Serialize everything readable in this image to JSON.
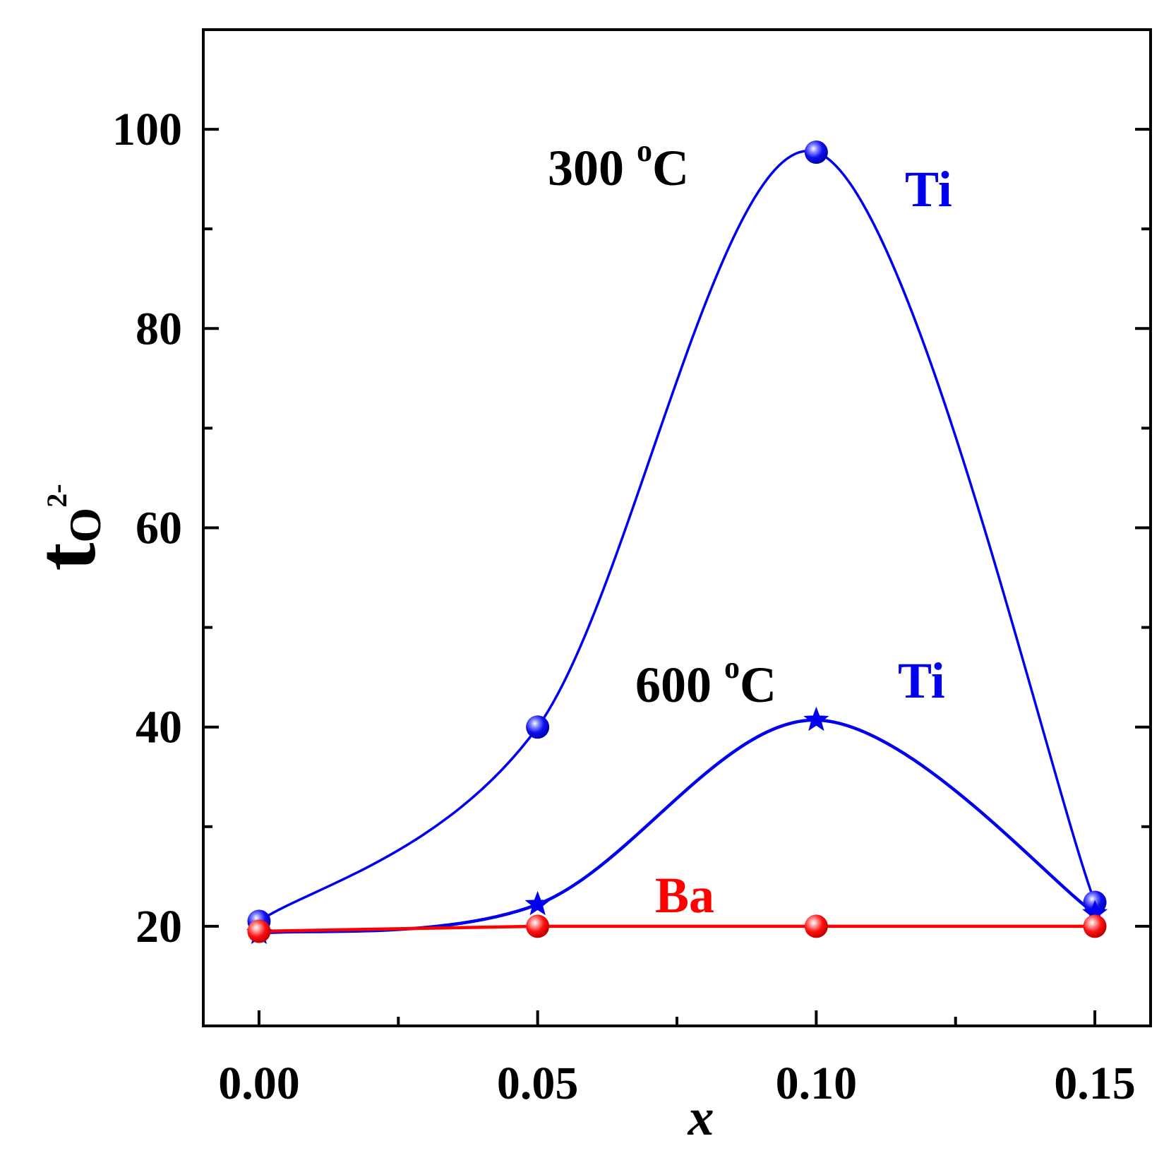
{
  "chart_data": {
    "type": "line",
    "x": [
      0.0,
      0.05,
      0.1,
      0.15
    ],
    "xlabel": "x",
    "ylabel": {
      "main": "t",
      "sub": "O",
      "sup": "2-"
    },
    "xlim": [
      -0.01,
      0.16
    ],
    "ylim": [
      10,
      110
    ],
    "xticks": [
      0.0,
      0.05,
      0.1,
      0.15
    ],
    "xtick_labels": [
      "0.00",
      "0.05",
      "0.10",
      "0.15"
    ],
    "xminor": [
      0.025,
      0.075,
      0.125
    ],
    "yticks": [
      20,
      40,
      60,
      80,
      100
    ],
    "ytick_labels": [
      "20",
      "40",
      "60",
      "80",
      "100"
    ],
    "yminor": [
      30,
      50,
      70,
      90
    ],
    "grid": false,
    "series": [
      {
        "name": "Ti 300 °C",
        "values": [
          20.5,
          40.0,
          97.7,
          22.4
        ],
        "marker": "sphere",
        "color": "#0000ee",
        "style": "smooth"
      },
      {
        "name": "Ti 600 °C",
        "values": [
          19.3,
          22.2,
          40.7,
          21.3
        ],
        "marker": "star",
        "color": "#0000ee",
        "style": "smooth"
      },
      {
        "name": "Ba",
        "values": [
          19.5,
          20.0,
          20.0,
          20.0
        ],
        "marker": "sphere",
        "color": "#ff0000",
        "style": "straight"
      }
    ],
    "annotations": [
      {
        "name": "annot-300c",
        "parts": [
          "300 ",
          "o",
          "C"
        ],
        "color": "#000000"
      },
      {
        "name": "annot-ti-300",
        "parts": [
          "Ti"
        ],
        "color": "#0000ee"
      },
      {
        "name": "annot-600c",
        "parts": [
          "600 ",
          "o",
          "C"
        ],
        "color": "#000000"
      },
      {
        "name": "annot-ti-600",
        "parts": [
          "Ti"
        ],
        "color": "#0000ee"
      },
      {
        "name": "annot-ba",
        "parts": [
          "Ba"
        ],
        "color": "#ff0000"
      }
    ]
  }
}
